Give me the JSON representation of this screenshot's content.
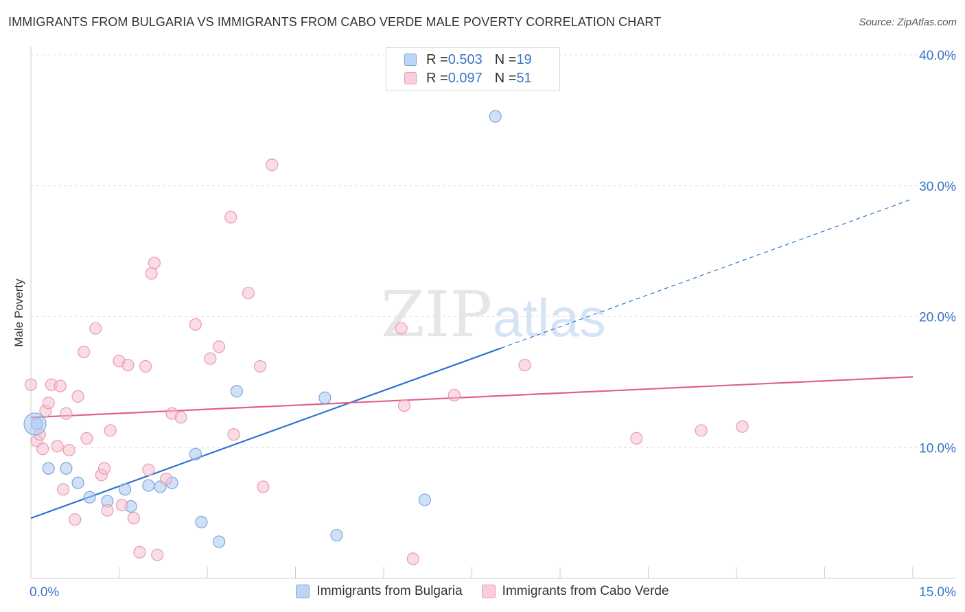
{
  "header": {
    "title": "IMMIGRANTS FROM BULGARIA VS IMMIGRANTS FROM CABO VERDE MALE POVERTY CORRELATION CHART",
    "source": "Source: ZipAtlas.com"
  },
  "watermark": {
    "zip": "ZIP",
    "atlas": "atlas"
  },
  "legend": {
    "rows": [
      {
        "r_label": "R = ",
        "r_value": "0.503",
        "n_label": "N = ",
        "n_value": "19"
      },
      {
        "r_label": "R = ",
        "r_value": "0.097",
        "n_label": "N = ",
        "n_value": "51"
      }
    ]
  },
  "chart_data": {
    "type": "scatter",
    "title": "IMMIGRANTS FROM BULGARIA VS IMMIGRANTS FROM CABO VERDE MALE POVERTY CORRELATION CHART",
    "xlabel": "",
    "ylabel": "Male Poverty",
    "xlim": [
      0,
      15
    ],
    "ylim": [
      0,
      40
    ],
    "x_tick_labels": [
      "0.0%",
      "15.0%"
    ],
    "y_ticks": [
      10,
      20,
      30,
      40
    ],
    "y_tick_labels": [
      "10.0%",
      "20.0%",
      "30.0%",
      "40.0%"
    ],
    "grid": true,
    "legend_position": "top-center",
    "series": [
      {
        "name": "Immigrants from Bulgaria",
        "color": "#a9c8f0",
        "stroke": "#7aa6de",
        "line_color": "#2f72d0",
        "r": 0.503,
        "n": 19,
        "trend": {
          "x0": 0,
          "y0": 4.6,
          "x1": 8.0,
          "y1": 17.6,
          "dash_to_x": 15,
          "dash_to_y": 29.0
        },
        "points": [
          [
            0.1,
            11.8
          ],
          [
            0.3,
            8.4
          ],
          [
            0.6,
            8.4
          ],
          [
            0.8,
            7.3
          ],
          [
            1.0,
            6.2
          ],
          [
            1.3,
            5.9
          ],
          [
            1.6,
            6.8
          ],
          [
            1.7,
            5.5
          ],
          [
            2.0,
            7.1
          ],
          [
            2.2,
            7.0
          ],
          [
            2.4,
            7.3
          ],
          [
            2.8,
            9.5
          ],
          [
            2.9,
            4.3
          ],
          [
            3.2,
            2.8
          ],
          [
            3.5,
            14.3
          ],
          [
            5.0,
            13.8
          ],
          [
            5.2,
            3.3
          ],
          [
            6.7,
            6.0
          ],
          [
            7.9,
            35.3
          ]
        ]
      },
      {
        "name": "Immigrants from Cabo Verde",
        "color": "#f6bfd0",
        "stroke": "#e99ab3",
        "line_color": "#e0608c",
        "r": 0.097,
        "n": 51,
        "trend": {
          "x0": 0,
          "y0": 12.3,
          "x1": 15,
          "y1": 15.4
        },
        "points": [
          [
            0.0,
            14.8
          ],
          [
            0.1,
            10.5
          ],
          [
            0.15,
            11.0
          ],
          [
            0.2,
            9.9
          ],
          [
            0.25,
            12.8
          ],
          [
            0.3,
            13.4
          ],
          [
            0.35,
            14.8
          ],
          [
            0.45,
            10.1
          ],
          [
            0.5,
            14.7
          ],
          [
            0.55,
            6.8
          ],
          [
            0.6,
            12.6
          ],
          [
            0.65,
            9.8
          ],
          [
            0.75,
            4.5
          ],
          [
            0.8,
            13.9
          ],
          [
            0.9,
            17.3
          ],
          [
            0.95,
            10.7
          ],
          [
            1.1,
            19.1
          ],
          [
            1.2,
            7.9
          ],
          [
            1.25,
            8.4
          ],
          [
            1.3,
            5.2
          ],
          [
            1.35,
            11.3
          ],
          [
            1.5,
            16.6
          ],
          [
            1.55,
            5.6
          ],
          [
            1.65,
            16.3
          ],
          [
            1.75,
            4.6
          ],
          [
            1.85,
            2.0
          ],
          [
            1.95,
            16.2
          ],
          [
            2.0,
            8.3
          ],
          [
            2.05,
            23.3
          ],
          [
            2.1,
            24.1
          ],
          [
            2.15,
            1.8
          ],
          [
            2.3,
            7.6
          ],
          [
            2.4,
            12.6
          ],
          [
            2.55,
            12.3
          ],
          [
            2.8,
            19.4
          ],
          [
            3.05,
            16.8
          ],
          [
            3.2,
            17.7
          ],
          [
            3.4,
            27.6
          ],
          [
            3.45,
            11.0
          ],
          [
            3.7,
            21.8
          ],
          [
            3.9,
            16.2
          ],
          [
            3.95,
            7.0
          ],
          [
            4.1,
            31.6
          ],
          [
            6.3,
            19.1
          ],
          [
            6.35,
            13.2
          ],
          [
            6.5,
            1.5
          ],
          [
            7.2,
            14.0
          ],
          [
            8.4,
            16.3
          ],
          [
            10.3,
            10.7
          ],
          [
            11.4,
            11.3
          ],
          [
            12.1,
            11.6
          ]
        ]
      }
    ]
  }
}
